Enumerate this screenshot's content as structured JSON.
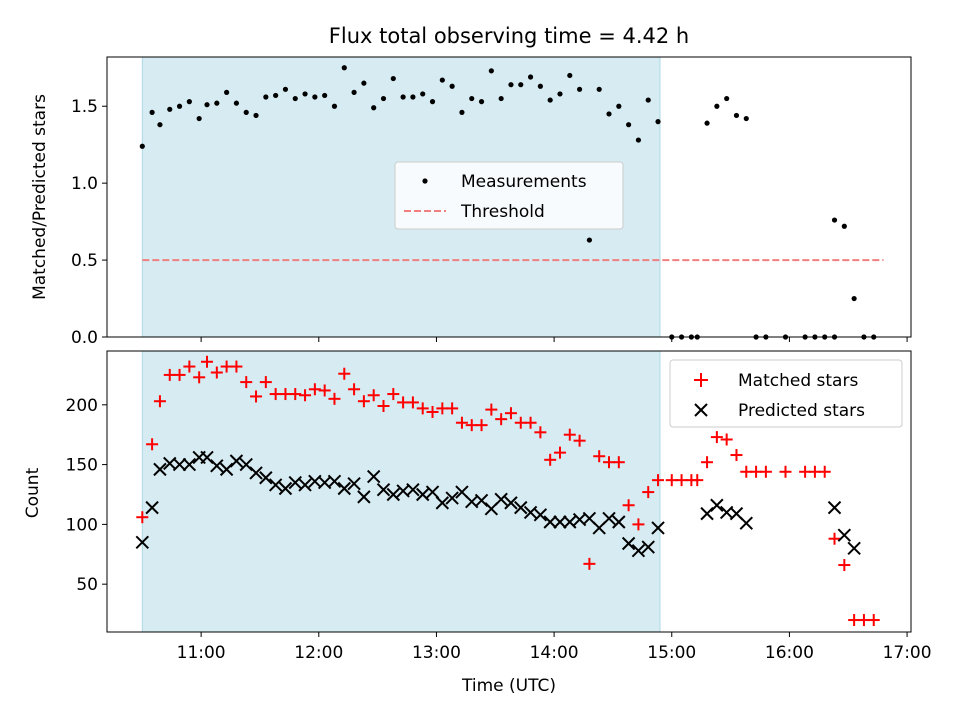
{
  "chart_data": [
    {
      "type": "scatter",
      "title": "Flux total observing time = 4.42 h",
      "xlabel": "",
      "ylabel": "Matched/Predicted stars",
      "xlim": [
        "10:12",
        "17:02"
      ],
      "ylim": [
        0,
        1.82
      ],
      "yticks": [
        0.0,
        0.5,
        1.0,
        1.5
      ],
      "ytick_labels": [
        "0.0",
        "0.5",
        "1.0",
        "1.5"
      ],
      "xticks": [
        "11:00",
        "12:00",
        "13:00",
        "14:00",
        "15:00",
        "16:00",
        "17:00"
      ],
      "shaded_interval": [
        "10:30",
        "14:54"
      ],
      "legend_position": "center",
      "threshold": {
        "name": "Threshold",
        "value": 0.5,
        "x_range": [
          "10:30",
          "16:48"
        ],
        "color": "#f08080"
      },
      "series": [
        {
          "name": "Measurements",
          "color": "#000000",
          "marker": "dot",
          "points": [
            [
              "10:30",
              1.24
            ],
            [
              "10:35",
              1.46
            ],
            [
              "10:39",
              1.38
            ],
            [
              "10:44",
              1.48
            ],
            [
              "10:49",
              1.5
            ],
            [
              "10:54",
              1.53
            ],
            [
              "10:59",
              1.42
            ],
            [
              "11:03",
              1.51
            ],
            [
              "11:08",
              1.52
            ],
            [
              "11:13",
              1.59
            ],
            [
              "11:18",
              1.52
            ],
            [
              "11:23",
              1.46
            ],
            [
              "11:28",
              1.44
            ],
            [
              "11:33",
              1.56
            ],
            [
              "11:38",
              1.57
            ],
            [
              "11:43",
              1.61
            ],
            [
              "11:48",
              1.55
            ],
            [
              "11:53",
              1.58
            ],
            [
              "11:58",
              1.56
            ],
            [
              "12:03",
              1.57
            ],
            [
              "12:08",
              1.5
            ],
            [
              "12:13",
              1.75
            ],
            [
              "12:18",
              1.59
            ],
            [
              "12:23",
              1.65
            ],
            [
              "12:28",
              1.49
            ],
            [
              "12:33",
              1.55
            ],
            [
              "12:38",
              1.68
            ],
            [
              "12:43",
              1.56
            ],
            [
              "12:48",
              1.56
            ],
            [
              "12:53",
              1.58
            ],
            [
              "12:58",
              1.53
            ],
            [
              "13:03",
              1.67
            ],
            [
              "13:08",
              1.63
            ],
            [
              "13:13",
              1.46
            ],
            [
              "13:18",
              1.55
            ],
            [
              "13:23",
              1.53
            ],
            [
              "13:28",
              1.73
            ],
            [
              "13:33",
              1.55
            ],
            [
              "13:38",
              1.64
            ],
            [
              "13:43",
              1.64
            ],
            [
              "13:48",
              1.69
            ],
            [
              "13:53",
              1.63
            ],
            [
              "13:58",
              1.54
            ],
            [
              "14:03",
              1.58
            ],
            [
              "14:08",
              1.7
            ],
            [
              "14:13",
              1.61
            ],
            [
              "14:18",
              0.63
            ],
            [
              "14:23",
              1.61
            ],
            [
              "14:28",
              1.45
            ],
            [
              "14:33",
              1.5
            ],
            [
              "14:38",
              1.38
            ],
            [
              "14:43",
              1.28
            ],
            [
              "14:48",
              1.54
            ],
            [
              "14:53",
              1.4
            ],
            [
              "15:00",
              0
            ],
            [
              "15:05",
              0
            ],
            [
              "15:10",
              0
            ],
            [
              "15:13",
              0
            ],
            [
              "15:18",
              1.39
            ],
            [
              "15:23",
              1.5
            ],
            [
              "15:28",
              1.55
            ],
            [
              "15:33",
              1.44
            ],
            [
              "15:38",
              1.42
            ],
            [
              "15:43",
              0
            ],
            [
              "15:48",
              0
            ],
            [
              "15:58",
              0
            ],
            [
              "16:08",
              0
            ],
            [
              "16:13",
              0
            ],
            [
              "16:18",
              0
            ],
            [
              "16:23",
              0
            ],
            [
              "16:23",
              0.76
            ],
            [
              "16:28",
              0.72
            ],
            [
              "16:33",
              0.25
            ],
            [
              "16:38",
              0
            ],
            [
              "16:43",
              0
            ]
          ]
        }
      ]
    },
    {
      "type": "scatter",
      "title": "",
      "xlabel": "Time (UTC)",
      "ylabel": "Count",
      "xlim": [
        "10:12",
        "17:02"
      ],
      "ylim": [
        10,
        245
      ],
      "yticks": [
        50,
        100,
        150,
        200
      ],
      "xticks": [
        "11:00",
        "12:00",
        "13:00",
        "14:00",
        "15:00",
        "16:00",
        "17:00"
      ],
      "shaded_interval": [
        "10:30",
        "14:54"
      ],
      "legend_position": "top-right",
      "series": [
        {
          "name": "Matched stars",
          "color": "#ff0000",
          "marker": "plus",
          "points": [
            [
              "10:30",
              106
            ],
            [
              "10:35",
              167
            ],
            [
              "10:39",
              203
            ],
            [
              "10:44",
              225
            ],
            [
              "10:49",
              225
            ],
            [
              "10:54",
              232
            ],
            [
              "10:59",
              223
            ],
            [
              "11:03",
              236
            ],
            [
              "11:08",
              227
            ],
            [
              "11:13",
              232
            ],
            [
              "11:18",
              232
            ],
            [
              "11:23",
              219
            ],
            [
              "11:28",
              207
            ],
            [
              "11:33",
              219
            ],
            [
              "11:38",
              209
            ],
            [
              "11:43",
              209
            ],
            [
              "11:48",
              209
            ],
            [
              "11:53",
              208
            ],
            [
              "11:58",
              213
            ],
            [
              "12:03",
              212
            ],
            [
              "12:08",
              205
            ],
            [
              "12:13",
              226
            ],
            [
              "12:18",
              213
            ],
            [
              "12:23",
              203
            ],
            [
              "12:28",
              208
            ],
            [
              "12:33",
              199
            ],
            [
              "12:38",
              209
            ],
            [
              "12:43",
              202
            ],
            [
              "12:48",
              202
            ],
            [
              "12:53",
              197
            ],
            [
              "12:58",
              194
            ],
            [
              "13:03",
              197
            ],
            [
              "13:08",
              197
            ],
            [
              "13:13",
              185
            ],
            [
              "13:18",
              183
            ],
            [
              "13:23",
              183
            ],
            [
              "13:28",
              196
            ],
            [
              "13:33",
              188
            ],
            [
              "13:38",
              193
            ],
            [
              "13:43",
              185
            ],
            [
              "13:48",
              185
            ],
            [
              "13:53",
              177
            ],
            [
              "13:58",
              154
            ],
            [
              "14:03",
              160
            ],
            [
              "14:08",
              175
            ],
            [
              "14:13",
              170
            ],
            [
              "14:18",
              67
            ],
            [
              "14:23",
              157
            ],
            [
              "14:28",
              152
            ],
            [
              "14:33",
              152
            ],
            [
              "14:38",
              116
            ],
            [
              "14:43",
              100
            ],
            [
              "14:48",
              127
            ],
            [
              "14:53",
              137
            ],
            [
              "15:00",
              137
            ],
            [
              "15:05",
              137
            ],
            [
              "15:10",
              137
            ],
            [
              "15:13",
              137
            ],
            [
              "15:18",
              152
            ],
            [
              "15:23",
              173
            ],
            [
              "15:28",
              171
            ],
            [
              "15:33",
              158
            ],
            [
              "15:38",
              144
            ],
            [
              "15:43",
              144
            ],
            [
              "15:48",
              144
            ],
            [
              "15:58",
              144
            ],
            [
              "16:08",
              144
            ],
            [
              "16:13",
              144
            ],
            [
              "16:18",
              144
            ],
            [
              "16:23",
              88
            ],
            [
              "16:28",
              66
            ],
            [
              "16:33",
              20
            ],
            [
              "16:38",
              20
            ],
            [
              "16:43",
              20
            ]
          ]
        },
        {
          "name": "Predicted stars",
          "color": "#000000",
          "marker": "x",
          "points": [
            [
              "10:30",
              85
            ],
            [
              "10:35",
              114
            ],
            [
              "10:39",
              146
            ],
            [
              "10:44",
              151
            ],
            [
              "10:49",
              150
            ],
            [
              "10:54",
              150
            ],
            [
              "10:59",
              156
            ],
            [
              "11:03",
              156
            ],
            [
              "11:08",
              149
            ],
            [
              "11:13",
              146
            ],
            [
              "11:18",
              153
            ],
            [
              "11:23",
              150
            ],
            [
              "11:28",
              143
            ],
            [
              "11:33",
              139
            ],
            [
              "11:38",
              133
            ],
            [
              "11:43",
              130
            ],
            [
              "11:48",
              135
            ],
            [
              "11:53",
              133
            ],
            [
              "11:58",
              136
            ],
            [
              "12:03",
              135
            ],
            [
              "12:08",
              136
            ],
            [
              "12:13",
              130
            ],
            [
              "12:18",
              134
            ],
            [
              "12:23",
              123
            ],
            [
              "12:28",
              140
            ],
            [
              "12:33",
              129
            ],
            [
              "12:38",
              125
            ],
            [
              "12:43",
              128
            ],
            [
              "12:48",
              129
            ],
            [
              "12:53",
              125
            ],
            [
              "12:58",
              127
            ],
            [
              "13:03",
              118
            ],
            [
              "13:08",
              122
            ],
            [
              "13:13",
              127
            ],
            [
              "13:18",
              119
            ],
            [
              "13:23",
              120
            ],
            [
              "13:28",
              113
            ],
            [
              "13:33",
              121
            ],
            [
              "13:38",
              118
            ],
            [
              "13:43",
              114
            ],
            [
              "13:48",
              110
            ],
            [
              "13:53",
              108
            ],
            [
              "13:58",
              102
            ],
            [
              "14:03",
              102
            ],
            [
              "14:08",
              102
            ],
            [
              "14:13",
              104
            ],
            [
              "14:18",
              105
            ],
            [
              "14:23",
              97
            ],
            [
              "14:28",
              105
            ],
            [
              "14:33",
              102
            ],
            [
              "14:38",
              84
            ],
            [
              "14:43",
              78
            ],
            [
              "14:48",
              81
            ],
            [
              "14:53",
              97
            ],
            [
              "15:18",
              109
            ],
            [
              "15:23",
              116
            ],
            [
              "15:28",
              110
            ],
            [
              "15:33",
              109
            ],
            [
              "15:38",
              101
            ],
            [
              "16:23",
              114
            ],
            [
              "16:28",
              91
            ],
            [
              "16:33",
              80
            ]
          ]
        }
      ]
    }
  ]
}
